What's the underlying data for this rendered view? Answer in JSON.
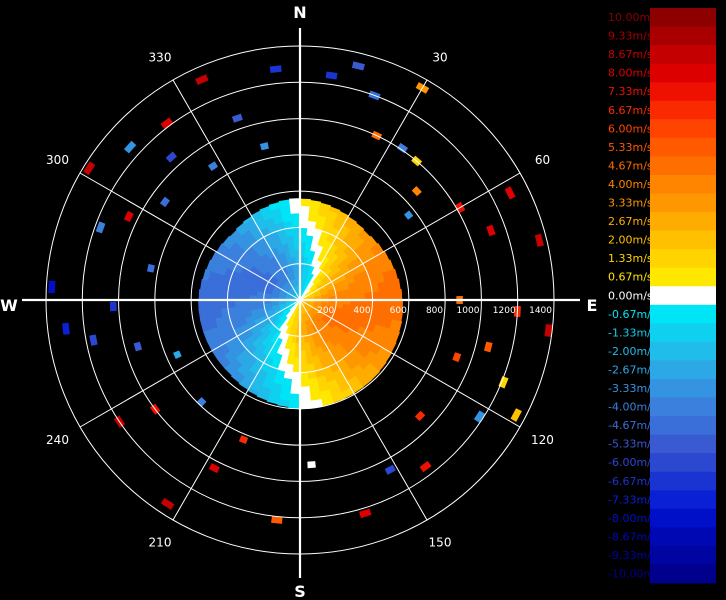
{
  "chart_data": {
    "type": "polar-heatmap",
    "title": "",
    "cardinals": [
      "N",
      "E",
      "S",
      "W"
    ],
    "azimuth_labels": [
      "30",
      "60",
      "120",
      "150",
      "210",
      "240",
      "300",
      "330"
    ],
    "range_labels": [
      "200",
      "400",
      "600",
      "800",
      "1000",
      "1200",
      "1400"
    ],
    "range_max": 1400,
    "velocity_unit": "m/s",
    "colorbar": {
      "labels": [
        "10.00m/s",
        "9.33m/s",
        "8.67m/s",
        "8.00m/s",
        "7.33m/s",
        "6.67m/s",
        "6.00m/s",
        "5.33m/s",
        "4.67m/s",
        "4.00m/s",
        "3.33m/s",
        "2.67m/s",
        "2.00m/s",
        "1.33m/s",
        "0.67m/s",
        "0.00m/s",
        "-0.67m/s",
        "-1.33m/s",
        "-2.00m/s",
        "-2.67m/s",
        "-3.33m/s",
        "-4.00m/s",
        "-4.67m/s",
        "-5.33m/s",
        "-6.00m/s",
        "-6.67m/s",
        "-7.33m/s",
        "-8.00m/s",
        "-8.67m/s",
        "-9.33m/s",
        "-10.00m/s"
      ],
      "colors": [
        "#8c0000",
        "#a80000",
        "#c40000",
        "#dc0000",
        "#ee1000",
        "#fa2a00",
        "#ff4400",
        "#ff5a00",
        "#ff6f00",
        "#ff8400",
        "#ff9800",
        "#ffac00",
        "#ffc000",
        "#ffd400",
        "#ffe800",
        "#ffffff",
        "#00e5f5",
        "#10d0f0",
        "#20bcea",
        "#2ca8e6",
        "#3494e2",
        "#3a80dc",
        "#3a6ed8",
        "#3a5ad2",
        "#2c48d0",
        "#1a34d2",
        "#0a20d4",
        "#0010c8",
        "#0008b4",
        "#0004a0",
        "#00008c"
      ]
    },
    "scan_disk_radius_m": 560,
    "scan_boundary_azimuths": [
      0,
      45,
      90,
      135,
      180,
      225,
      270,
      315,
      355
    ],
    "scan_boundary_ranges_m": [
      560,
      520,
      565,
      590,
      600,
      560,
      560,
      520,
      560
    ],
    "doppler_scan_notes": "zero-velocity line spirals from the center; blue (toward radar) to the north-west, yellow/orange (away) to the south-east",
    "velocity_field": {
      "approaching_side_deg": 315,
      "receding_side_deg": 135,
      "max_speed_mps": 4.5
    },
    "scatter_bins": [
      {
        "az": 8,
        "r": 1250,
        "v": -6.7
      },
      {
        "az": 14,
        "r": 1330,
        "v": -5.3
      },
      {
        "az": 20,
        "r": 1200,
        "v": -4.7
      },
      {
        "az": 25,
        "r": 1000,
        "v": 4.7
      },
      {
        "az": 30,
        "r": 1350,
        "v": 3.3
      },
      {
        "az": 34,
        "r": 1010,
        "v": -4.0
      },
      {
        "az": 40,
        "r": 1000,
        "v": 1.3
      },
      {
        "az": 47,
        "r": 880,
        "v": 4.0
      },
      {
        "az": 52,
        "r": 760,
        "v": -3.3
      },
      {
        "az": 60,
        "r": 1020,
        "v": 7.3
      },
      {
        "az": 63,
        "r": 1300,
        "v": 8.0
      },
      {
        "az": 70,
        "r": 1120,
        "v": 8.0
      },
      {
        "az": 76,
        "r": 1360,
        "v": 8.7
      },
      {
        "az": 90,
        "r": 880,
        "v": 4.7
      },
      {
        "az": 93,
        "r": 1200,
        "v": 6.7
      },
      {
        "az": 97,
        "r": 1380,
        "v": 8.7
      },
      {
        "az": 104,
        "r": 1070,
        "v": 5.3
      },
      {
        "az": 110,
        "r": 920,
        "v": 6.0
      },
      {
        "az": 112,
        "r": 1210,
        "v": 1.3
      },
      {
        "az": 118,
        "r": 1350,
        "v": 2.0
      },
      {
        "az": 123,
        "r": 1180,
        "v": -3.3
      },
      {
        "az": 134,
        "r": 920,
        "v": 6.7
      },
      {
        "az": 143,
        "r": 1150,
        "v": 7.3
      },
      {
        "az": 152,
        "r": 1060,
        "v": -6.0
      },
      {
        "az": 163,
        "r": 1230,
        "v": 8.0
      },
      {
        "az": 176,
        "r": 910,
        "v": 0.0
      },
      {
        "az": 186,
        "r": 1220,
        "v": 5.3
      },
      {
        "az": 202,
        "r": 830,
        "v": 6.7
      },
      {
        "az": 207,
        "r": 1040,
        "v": 8.0
      },
      {
        "az": 213,
        "r": 1340,
        "v": 8.7
      },
      {
        "az": 224,
        "r": 780,
        "v": -4.0
      },
      {
        "az": 233,
        "r": 1000,
        "v": 7.3
      },
      {
        "az": 236,
        "r": 1200,
        "v": 8.7
      },
      {
        "az": 246,
        "r": 740,
        "v": -2.7
      },
      {
        "az": 254,
        "r": 930,
        "v": -5.3
      },
      {
        "az": 259,
        "r": 1160,
        "v": -6.0
      },
      {
        "az": 263,
        "r": 1300,
        "v": -7.3
      },
      {
        "az": 268,
        "r": 1030,
        "v": -6.7
      },
      {
        "az": 273,
        "r": 1370,
        "v": -8.0
      },
      {
        "az": 282,
        "r": 840,
        "v": -4.7
      },
      {
        "az": 290,
        "r": 1170,
        "v": -4.0
      },
      {
        "az": 296,
        "r": 1050,
        "v": 8.0
      },
      {
        "az": 302,
        "r": 1370,
        "v": 8.7
      },
      {
        "az": 306,
        "r": 920,
        "v": -4.7
      },
      {
        "az": 312,
        "r": 1260,
        "v": -3.3
      },
      {
        "az": 318,
        "r": 1060,
        "v": -6.0
      },
      {
        "az": 323,
        "r": 1220,
        "v": 8.0
      },
      {
        "az": 327,
        "r": 880,
        "v": -4.0
      },
      {
        "az": 336,
        "r": 1330,
        "v": 8.7
      },
      {
        "az": 341,
        "r": 1060,
        "v": -5.3
      },
      {
        "az": 347,
        "r": 870,
        "v": -3.3
      },
      {
        "az": 354,
        "r": 1280,
        "v": -6.7
      }
    ],
    "grid": true
  }
}
